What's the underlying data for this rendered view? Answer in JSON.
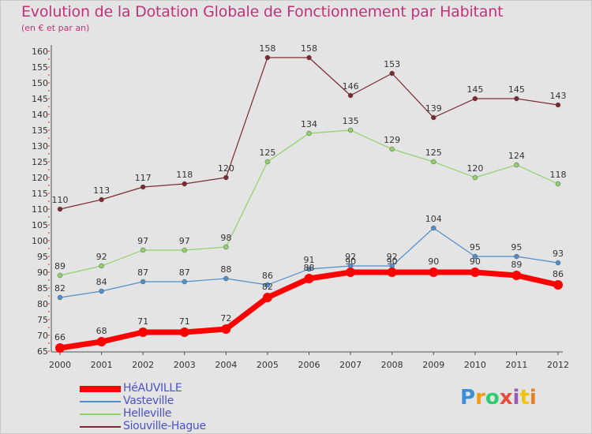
{
  "title": "Evolution de la Dotation Globale de Fonctionnement par Habitant",
  "subtitle": "(en € et par an)",
  "logo": {
    "text": "Proxiti",
    "letter_colors": [
      "#3b8ed8",
      "#f39c12",
      "#2ecc71",
      "#e74c3c",
      "#9b59b6",
      "#f1c40f",
      "#e67e22"
    ]
  },
  "chart_data": {
    "type": "line",
    "title": "Evolution de la Dotation Globale de Fonctionnement par Habitant",
    "subtitle": "(en € et par an)",
    "xlabel": "",
    "ylabel": "",
    "x": [
      "2000",
      "2001",
      "2002",
      "2003",
      "2004",
      "2005",
      "2006",
      "2007",
      "2008",
      "2009",
      "2010",
      "2011",
      "2012"
    ],
    "ylim": [
      65,
      160
    ],
    "ytick_step": 5,
    "grid": false,
    "legend_position": "bottom-left",
    "series": [
      {
        "name": "HéAUVILLE",
        "color": "#ff0000",
        "width": 7,
        "marker": 6,
        "values": [
          66,
          68,
          71,
          71,
          72,
          82,
          88,
          90,
          90,
          90,
          90,
          89,
          86
        ]
      },
      {
        "name": "Vasteville",
        "color": "#4f8fcb",
        "width": 1.2,
        "marker": 3,
        "values": [
          82,
          84,
          87,
          87,
          88,
          86,
          91,
          92,
          92,
          104,
          95,
          95,
          93
        ]
      },
      {
        "name": "Helleville",
        "color": "#8fd16a",
        "width": 1.2,
        "marker": 3,
        "values": [
          89,
          92,
          97,
          97,
          98,
          125,
          134,
          135,
          129,
          125,
          120,
          124,
          118
        ]
      },
      {
        "name": "Siouville-Hague",
        "color": "#7a2a33",
        "width": 1.2,
        "marker": 3,
        "values": [
          110,
          113,
          117,
          118,
          120,
          158,
          158,
          146,
          153,
          139,
          145,
          145,
          143
        ]
      }
    ]
  }
}
